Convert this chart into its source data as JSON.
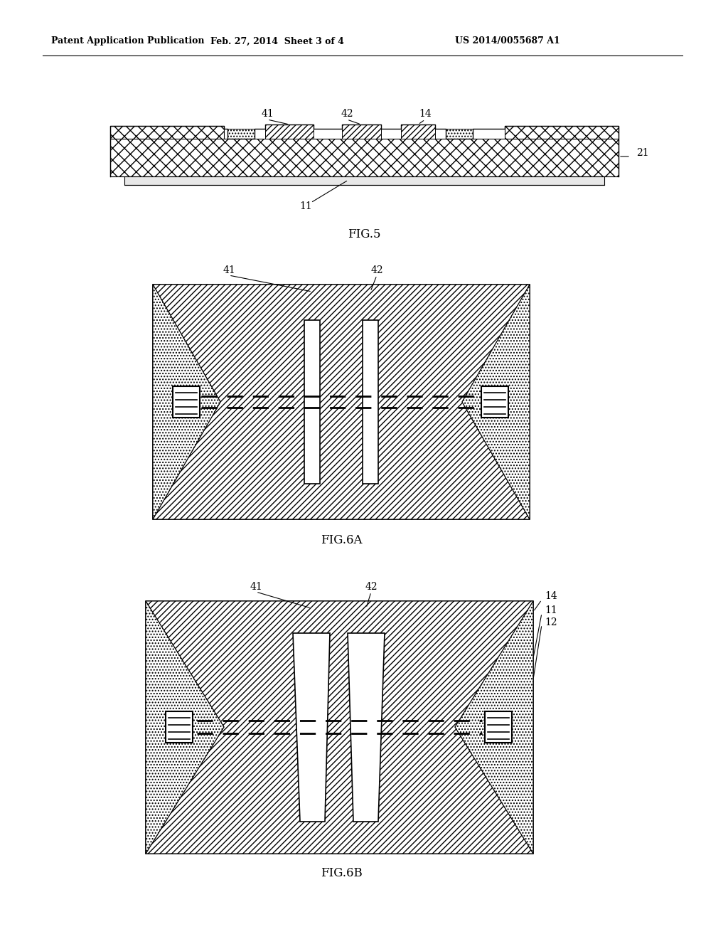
{
  "header_left": "Patent Application Publication",
  "header_center": "Feb. 27, 2014  Sheet 3 of 4",
  "header_right": "US 2014/0055687 A1",
  "fig5_label": "FIG.5",
  "fig6a_label": "FIG.6A",
  "fig6b_label": "FIG.6B",
  "bg_color": "#ffffff"
}
